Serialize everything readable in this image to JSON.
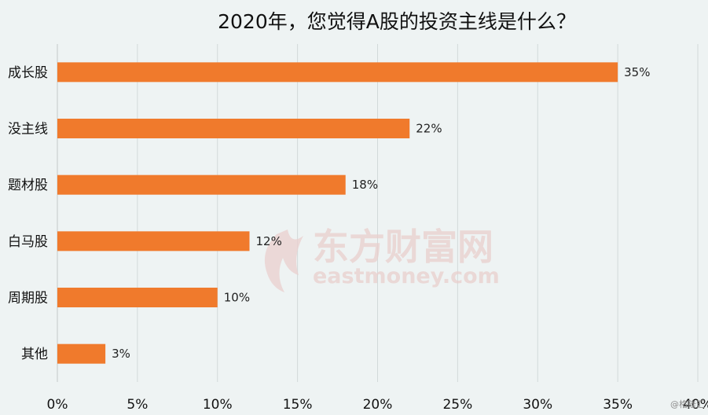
{
  "chart_data": {
    "type": "bar",
    "orientation": "horizontal",
    "title": "2020年，您觉得A股的投资主线是什么？",
    "categories": [
      "成长股",
      "没主线",
      "题材股",
      "白马股",
      "周期股",
      "其他"
    ],
    "values": [
      35,
      22,
      18,
      12,
      10,
      3
    ],
    "value_labels": [
      "35%",
      "22%",
      "18%",
      "12%",
      "10%",
      "3%"
    ],
    "xlim": [
      0,
      40
    ],
    "x_ticks": [
      "0%",
      "5%",
      "10%",
      "15%",
      "20%",
      "25%",
      "30%",
      "35%",
      "40%"
    ],
    "grid": true,
    "bar_color": "#f07a2c"
  },
  "watermark": {
    "brand_cn": "东方财富网",
    "brand_en": "eastmoney.com"
  },
  "corner_mark": "格隆汇"
}
